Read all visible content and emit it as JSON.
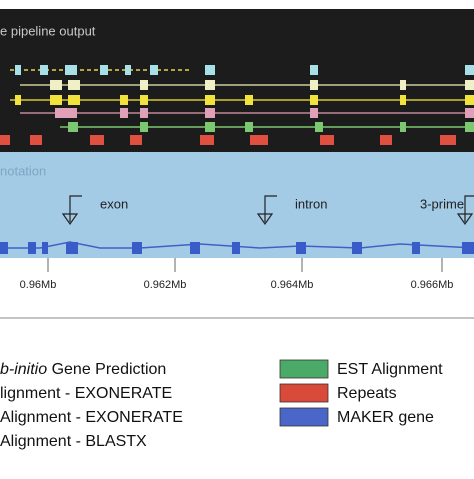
{
  "pipeline_panel": {
    "title": "e pipeline output"
  },
  "annotation_panel": {
    "title": "notation",
    "labels": [
      "exon",
      "intron",
      "3-prime"
    ]
  },
  "axis": {
    "labels": [
      "0.96Mb",
      "0.962Mb",
      "0.964Mb",
      "0.966Mb"
    ]
  },
  "legend": {
    "left": [
      {
        "italic": "b-initio",
        "text": " Gene Prediction"
      },
      {
        "text": "lignment - EXONERATE"
      },
      {
        "text": "Alignment - EXONERATE"
      },
      {
        "text": "Alignment - BLASTX"
      }
    ],
    "right": [
      {
        "text": "EST Alignment"
      },
      {
        "text": "Repeats"
      },
      {
        "text": "MAKER gene"
      }
    ]
  }
}
